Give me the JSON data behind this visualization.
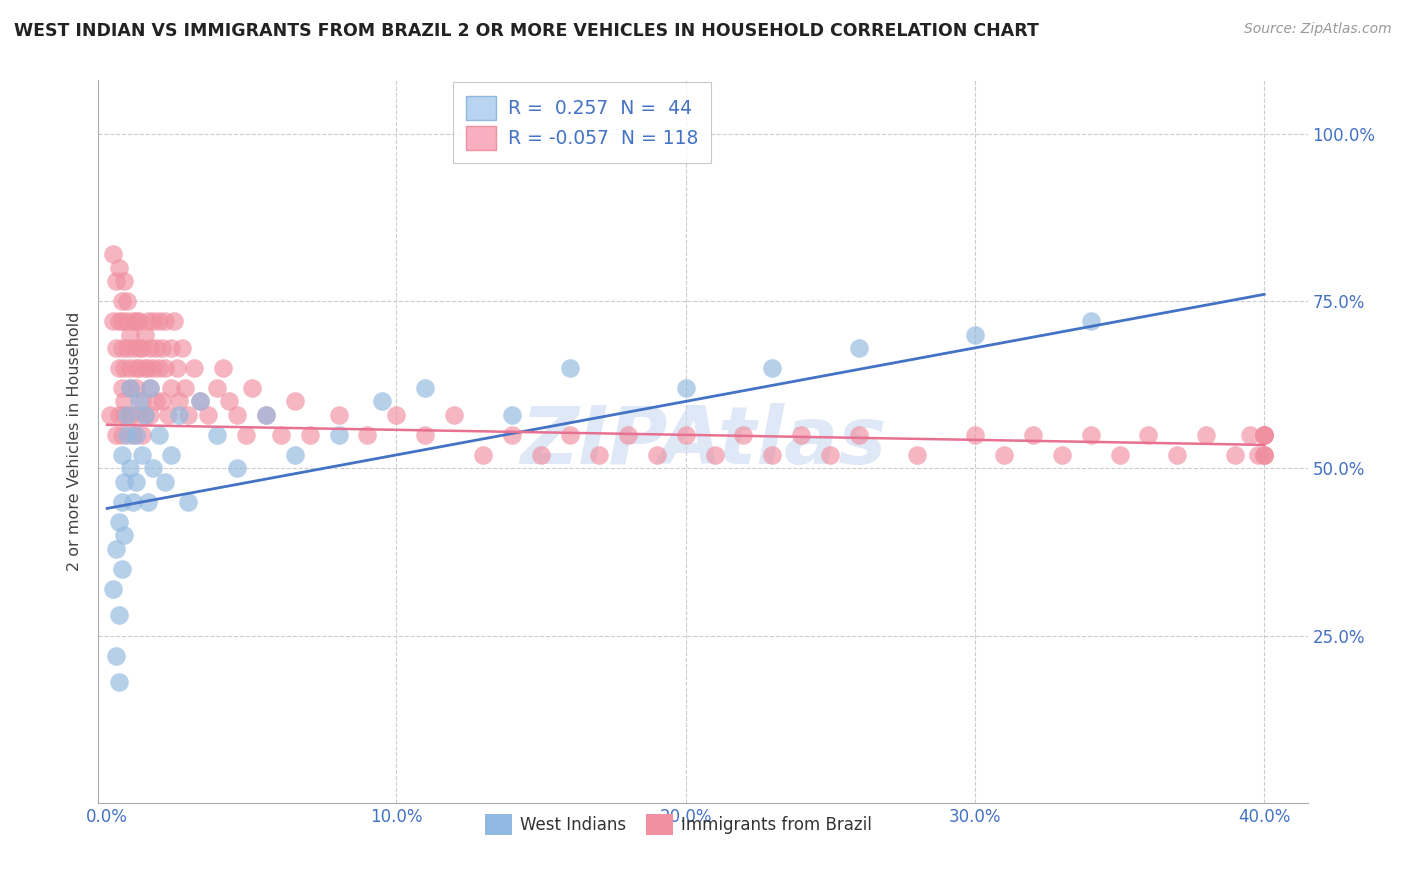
{
  "title": "WEST INDIAN VS IMMIGRANTS FROM BRAZIL 2 OR MORE VEHICLES IN HOUSEHOLD CORRELATION CHART",
  "source": "Source: ZipAtlas.com",
  "ylabel": "2 or more Vehicles in Household",
  "xlim": [
    -0.003,
    0.415
  ],
  "ylim": [
    0.0,
    1.08
  ],
  "xtick_vals": [
    0.0,
    0.1,
    0.2,
    0.3,
    0.4
  ],
  "xtick_labels": [
    "0.0%",
    "10.0%",
    "20.0%",
    "30.0%",
    "40.0%"
  ],
  "ytick_vals": [
    0.25,
    0.5,
    0.75,
    1.0
  ],
  "ytick_labels": [
    "25.0%",
    "50.0%",
    "75.0%",
    "100.0%"
  ],
  "scatter_wi_color": "#90b8e0",
  "scatter_br_color": "#f090a0",
  "line_wi_color": "#4472c4",
  "line_br_color": "#e87090",
  "legend1_patch_color": "#b8d4f0",
  "legend2_patch_color": "#f8b0c0",
  "legend1_text": "R =  0.257  N =  44",
  "legend2_text": "R = -0.057  N = 118",
  "legend_text_color": "#4472c4",
  "watermark_text": "ZIPAtlas",
  "watermark_color": "#c8daf0",
  "title_color": "#222222",
  "source_color": "#999999",
  "label_color": "#4472c4",
  "ylabel_color": "#444444",
  "grid_color": "#cccccc",
  "wi_x": [
    0.002,
    0.003,
    0.003,
    0.004,
    0.004,
    0.004,
    0.005,
    0.005,
    0.005,
    0.006,
    0.006,
    0.007,
    0.007,
    0.008,
    0.008,
    0.009,
    0.01,
    0.01,
    0.011,
    0.012,
    0.013,
    0.014,
    0.015,
    0.016,
    0.018,
    0.02,
    0.022,
    0.025,
    0.028,
    0.032,
    0.038,
    0.045,
    0.055,
    0.065,
    0.08,
    0.095,
    0.11,
    0.14,
    0.16,
    0.2,
    0.23,
    0.26,
    0.3,
    0.34
  ],
  "wi_y": [
    0.32,
    0.38,
    0.22,
    0.28,
    0.42,
    0.18,
    0.45,
    0.35,
    0.52,
    0.48,
    0.4,
    0.55,
    0.58,
    0.5,
    0.62,
    0.45,
    0.55,
    0.48,
    0.6,
    0.52,
    0.58,
    0.45,
    0.62,
    0.5,
    0.55,
    0.48,
    0.52,
    0.58,
    0.45,
    0.6,
    0.55,
    0.5,
    0.58,
    0.52,
    0.55,
    0.6,
    0.62,
    0.58,
    0.65,
    0.62,
    0.65,
    0.68,
    0.7,
    0.72
  ],
  "br_x": [
    0.001,
    0.002,
    0.002,
    0.003,
    0.003,
    0.003,
    0.004,
    0.004,
    0.004,
    0.004,
    0.005,
    0.005,
    0.005,
    0.005,
    0.005,
    0.006,
    0.006,
    0.006,
    0.006,
    0.007,
    0.007,
    0.007,
    0.008,
    0.008,
    0.008,
    0.008,
    0.009,
    0.009,
    0.009,
    0.01,
    0.01,
    0.01,
    0.01,
    0.011,
    0.011,
    0.011,
    0.012,
    0.012,
    0.012,
    0.013,
    0.013,
    0.013,
    0.014,
    0.014,
    0.015,
    0.015,
    0.015,
    0.016,
    0.016,
    0.017,
    0.017,
    0.018,
    0.018,
    0.019,
    0.019,
    0.02,
    0.02,
    0.021,
    0.022,
    0.022,
    0.023,
    0.024,
    0.025,
    0.026,
    0.027,
    0.028,
    0.03,
    0.032,
    0.035,
    0.038,
    0.04,
    0.042,
    0.045,
    0.048,
    0.05,
    0.055,
    0.06,
    0.065,
    0.07,
    0.08,
    0.09,
    0.1,
    0.11,
    0.12,
    0.13,
    0.14,
    0.15,
    0.16,
    0.17,
    0.18,
    0.19,
    0.2,
    0.21,
    0.22,
    0.23,
    0.24,
    0.25,
    0.26,
    0.28,
    0.3,
    0.31,
    0.32,
    0.33,
    0.34,
    0.35,
    0.36,
    0.37,
    0.38,
    0.39,
    0.395,
    0.398,
    0.4,
    0.4,
    0.4,
    0.4,
    0.4,
    0.4,
    0.4
  ],
  "br_y": [
    0.58,
    0.72,
    0.82,
    0.68,
    0.78,
    0.55,
    0.72,
    0.65,
    0.8,
    0.58,
    0.75,
    0.68,
    0.62,
    0.55,
    0.72,
    0.78,
    0.65,
    0.6,
    0.58,
    0.72,
    0.68,
    0.75,
    0.62,
    0.7,
    0.58,
    0.65,
    0.72,
    0.68,
    0.55,
    0.65,
    0.72,
    0.58,
    0.62,
    0.68,
    0.72,
    0.65,
    0.6,
    0.68,
    0.55,
    0.65,
    0.7,
    0.58,
    0.65,
    0.72,
    0.68,
    0.62,
    0.58,
    0.65,
    0.72,
    0.6,
    0.68,
    0.72,
    0.65,
    0.6,
    0.68,
    0.72,
    0.65,
    0.58,
    0.62,
    0.68,
    0.72,
    0.65,
    0.6,
    0.68,
    0.62,
    0.58,
    0.65,
    0.6,
    0.58,
    0.62,
    0.65,
    0.6,
    0.58,
    0.55,
    0.62,
    0.58,
    0.55,
    0.6,
    0.55,
    0.58,
    0.55,
    0.58,
    0.55,
    0.58,
    0.52,
    0.55,
    0.52,
    0.55,
    0.52,
    0.55,
    0.52,
    0.55,
    0.52,
    0.55,
    0.52,
    0.55,
    0.52,
    0.55,
    0.52,
    0.55,
    0.52,
    0.55,
    0.52,
    0.55,
    0.52,
    0.55,
    0.52,
    0.55,
    0.52,
    0.55,
    0.52,
    0.55,
    0.52,
    0.55,
    0.52,
    0.55,
    0.52,
    0.55
  ],
  "wi_line_x": [
    0.0,
    0.4
  ],
  "wi_line_y": [
    0.44,
    0.76
  ],
  "br_line_x": [
    0.0,
    0.4
  ],
  "br_line_y": [
    0.565,
    0.535
  ]
}
